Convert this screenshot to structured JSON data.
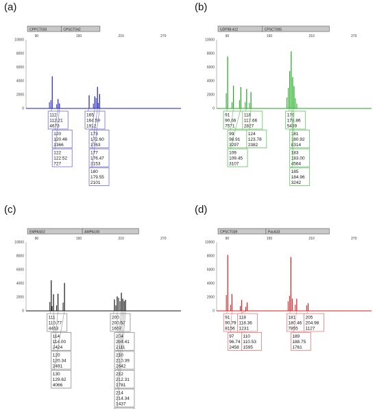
{
  "chart_data": [
    {
      "panel": "(a)",
      "type": "electropherogram",
      "color": "#1a1ac8",
      "box_color": "#6b6bd6",
      "x_ticks": [
        90,
        150,
        210,
        270
      ],
      "xlim": [
        75,
        295
      ],
      "y_ticks": [
        0,
        2000,
        4000,
        6000,
        8000,
        10000
      ],
      "ylim": [
        0,
        10000
      ],
      "markers": [
        {
          "name": "CPPCT033",
          "start": 77,
          "end": 125
        },
        {
          "name": "CPSCT042",
          "start": 125,
          "end": 180
        }
      ],
      "peaks": [
        {
          "x": 112.21,
          "y": 4673
        },
        {
          "x": 120.46,
          "y": 1366
        },
        {
          "x": 122.52,
          "y": 727
        },
        {
          "x": 164.59,
          "y": 1912
        },
        {
          "x": 172.6,
          "y": 1763
        },
        {
          "x": 176.47,
          "y": 3153
        },
        {
          "x": 179.55,
          "y": 2101
        }
      ],
      "minor_peaks": [
        {
          "x": 108.2,
          "y": 900
        },
        {
          "x": 110.2,
          "y": 1200
        },
        {
          "x": 118.5,
          "y": 600
        },
        {
          "x": 170.6,
          "y": 700
        },
        {
          "x": 174.5,
          "y": 1500
        },
        {
          "x": 177.5,
          "y": 800
        }
      ],
      "labels": [
        {
          "text": [
            "112",
            "112.21",
            "4673"
          ],
          "peak": 0,
          "col": 0,
          "row": 0
        },
        {
          "text": [
            "120",
            "120.46",
            "1366"
          ],
          "peak": 1,
          "col": 0,
          "row": 1
        },
        {
          "text": [
            "122",
            "122.52",
            "727"
          ],
          "peak": 2,
          "col": 0,
          "row": 2
        },
        {
          "text": [
            "165",
            "164.59",
            "1912"
          ],
          "peak": 3,
          "col": 1,
          "row": 0
        },
        {
          "text": [
            "173",
            "172.60",
            "1763"
          ],
          "peak": 4,
          "col": 1,
          "row": 1
        },
        {
          "text": [
            "177",
            "176.47",
            "3153"
          ],
          "peak": 5,
          "col": 1,
          "row": 2
        },
        {
          "text": [
            "180",
            "179.55",
            "2101"
          ],
          "peak": 6,
          "col": 1,
          "row": 3
        }
      ]
    },
    {
      "panel": "(b)",
      "type": "electropherogram",
      "color": "#1aa61a",
      "box_color": "#5fc05f",
      "x_ticks": [
        90,
        150,
        210,
        270
      ],
      "xlim": [
        75,
        295
      ],
      "y_ticks": [
        0,
        2000,
        4000,
        6000,
        8000,
        10000
      ],
      "ylim": [
        0,
        10000
      ],
      "markers": [
        {
          "name": "UDP98-412",
          "start": 77,
          "end": 140
        },
        {
          "name": "CPSCT005",
          "start": 140,
          "end": 235
        }
      ],
      "peaks": [
        {
          "x": 90.66,
          "y": 7571
        },
        {
          "x": 98.91,
          "y": 3297
        },
        {
          "x": 109.45,
          "y": 3107
        },
        {
          "x": 117.66,
          "y": 2827
        },
        {
          "x": 123.78,
          "y": 2382
        },
        {
          "x": 178.86,
          "y": 5439
        },
        {
          "x": 180.92,
          "y": 8314
        },
        {
          "x": 183.0,
          "y": 4564
        },
        {
          "x": 184.96,
          "y": 3242
        }
      ],
      "minor_peaks": [
        {
          "x": 88.7,
          "y": 2200
        },
        {
          "x": 96.9,
          "y": 900
        },
        {
          "x": 107.5,
          "y": 1200
        },
        {
          "x": 115.7,
          "y": 900
        },
        {
          "x": 121.8,
          "y": 800
        },
        {
          "x": 174.9,
          "y": 1600
        },
        {
          "x": 176.9,
          "y": 3000
        },
        {
          "x": 186.9,
          "y": 1500
        },
        {
          "x": 188.9,
          "y": 700
        }
      ],
      "labels": [
        {
          "text": [
            "91",
            "90.66",
            "7571"
          ],
          "peak": 0,
          "col": 0,
          "row": 0
        },
        {
          "text": [
            "99",
            "98.91",
            "3297"
          ],
          "peak": 1,
          "col": 0,
          "row": 1
        },
        {
          "text": [
            "109",
            "109.45",
            "3107"
          ],
          "peak": 2,
          "col": 0,
          "row": 2
        },
        {
          "text": [
            "118",
            "117.66",
            "2827"
          ],
          "peak": 3,
          "col": 1,
          "row": 0
        },
        {
          "text": [
            "124",
            "123.78",
            "2382"
          ],
          "peak": 4,
          "col": 1,
          "row": 1
        },
        {
          "text": [
            "179",
            "178.86",
            "5439"
          ],
          "peak": 5,
          "col": 2,
          "row": 0
        },
        {
          "text": [
            "181",
            "180.92",
            "8314"
          ],
          "peak": 6,
          "col": 2,
          "row": 1
        },
        {
          "text": [
            "183",
            "183.00",
            "4564"
          ],
          "peak": 7,
          "col": 2,
          "row": 2
        },
        {
          "text": [
            "185",
            "184.96",
            "3242"
          ],
          "peak": 8,
          "col": 2,
          "row": 3
        }
      ]
    },
    {
      "panel": "(c)",
      "type": "electropherogram",
      "color": "#111111",
      "box_color": "#8a8a8a",
      "x_ticks": [
        90,
        150,
        210,
        270
      ],
      "xlim": [
        75,
        295
      ],
      "y_ticks": [
        0,
        2000,
        4000,
        6000,
        8000,
        10000
      ],
      "ylim": [
        0,
        10000
      ],
      "markers": [
        {
          "name": "EMPAS02",
          "start": 77,
          "end": 155
        },
        {
          "name": "AMPA100",
          "start": 155,
          "end": 235
        }
      ],
      "peaks": [
        {
          "x": 110.77,
          "y": 4463
        },
        {
          "x": 114.0,
          "y": 2424
        },
        {
          "x": 120.34,
          "y": 2491
        },
        {
          "x": 129.62,
          "y": 4066
        },
        {
          "x": 200.57,
          "y": 1667
        },
        {
          "x": 204.41,
          "y": 2111
        },
        {
          "x": 210.39,
          "y": 2642
        },
        {
          "x": 212.31,
          "y": 1781
        },
        {
          "x": 214.34,
          "y": 1437
        },
        {
          "x": 216.27,
          "y": 1607
        }
      ],
      "minor_peaks": [
        {
          "x": 108.8,
          "y": 1300
        },
        {
          "x": 112.0,
          "y": 700
        },
        {
          "x": 118.3,
          "y": 800
        },
        {
          "x": 127.6,
          "y": 1200
        },
        {
          "x": 202.5,
          "y": 800
        },
        {
          "x": 206.4,
          "y": 1900
        },
        {
          "x": 208.4,
          "y": 1400
        }
      ],
      "labels": [
        {
          "text": [
            "111",
            "110.77",
            "4463"
          ],
          "peak": 0,
          "col": 0,
          "row": 0
        },
        {
          "text": [
            "114",
            "114.00",
            "2424"
          ],
          "peak": 1,
          "col": 0,
          "row": 1
        },
        {
          "text": [
            "120",
            "120.34",
            "2491"
          ],
          "peak": 2,
          "col": 0,
          "row": 2
        },
        {
          "text": [
            "130",
            "129.62",
            "4066"
          ],
          "peak": 3,
          "col": 0,
          "row": 3
        },
        {
          "text": [
            "200",
            "200.57",
            "1667"
          ],
          "peak": 4,
          "col": 1,
          "row": 0
        },
        {
          "text": [
            "204",
            "204.41",
            "2111"
          ],
          "peak": 5,
          "col": 1,
          "row": 1
        },
        {
          "text": [
            "210",
            "210.39",
            "2642"
          ],
          "peak": 6,
          "col": 1,
          "row": 2
        },
        {
          "text": [
            "212",
            "212.31",
            "1781"
          ],
          "peak": 7,
          "col": 1,
          "row": 3
        },
        {
          "text": [
            "214",
            "214.34",
            "1437"
          ],
          "peak": 8,
          "col": 1,
          "row": 4
        },
        {
          "text": [
            "216",
            "216.27",
            "1607"
          ],
          "peak": 9,
          "col": 1,
          "row": 5
        }
      ]
    },
    {
      "panel": "(d)",
      "type": "electropherogram",
      "color": "#d81a1a",
      "box_color": "#e57a7a",
      "x_ticks": [
        90,
        150,
        210,
        270
      ],
      "xlim": [
        75,
        295
      ],
      "y_ticks": [
        0,
        2000,
        4000,
        6000,
        8000,
        10000
      ],
      "ylim": [
        0,
        10000
      ],
      "markers": [
        {
          "name": "CPSCT039",
          "start": 77,
          "end": 145
        },
        {
          "name": "PacA33",
          "start": 145,
          "end": 235
        }
      ],
      "peaks": [
        {
          "x": 90.79,
          "y": 8156
        },
        {
          "x": 96.74,
          "y": 2458
        },
        {
          "x": 110.53,
          "y": 1595
        },
        {
          "x": 118.36,
          "y": 1231
        },
        {
          "x": 180.46,
          "y": 7855
        },
        {
          "x": 188.75,
          "y": 1761
        },
        {
          "x": 204.98,
          "y": 1127
        }
      ],
      "minor_peaks": [
        {
          "x": 88.8,
          "y": 2300
        },
        {
          "x": 94.8,
          "y": 900
        },
        {
          "x": 108.6,
          "y": 700
        },
        {
          "x": 116.4,
          "y": 600
        },
        {
          "x": 176.5,
          "y": 1400
        },
        {
          "x": 178.5,
          "y": 2200
        },
        {
          "x": 182.5,
          "y": 1800
        },
        {
          "x": 186.8,
          "y": 900
        },
        {
          "x": 202.9,
          "y": 800
        }
      ],
      "labels": [
        {
          "text": [
            "91",
            "90.79",
            "8156"
          ],
          "peak": 0,
          "col": 0,
          "row": 0
        },
        {
          "text": [
            "97",
            "96.74",
            "2458"
          ],
          "peak": 1,
          "col": 0,
          "row": 1
        },
        {
          "text": [
            "110",
            "110.53",
            "1595"
          ],
          "peak": 2,
          "col": 1,
          "row": 1
        },
        {
          "text": [
            "118",
            "118.36",
            "1231"
          ],
          "peak": 3,
          "col": 1,
          "row": 0
        },
        {
          "text": [
            "181",
            "180.46",
            "7855"
          ],
          "peak": 4,
          "col": 2,
          "row": 0
        },
        {
          "text": [
            "189",
            "188.75",
            "1761"
          ],
          "peak": 5,
          "col": 2,
          "row": 1
        },
        {
          "text": [
            "205",
            "204.98",
            "1127"
          ],
          "peak": 6,
          "col": 3,
          "row": 0
        }
      ]
    }
  ]
}
